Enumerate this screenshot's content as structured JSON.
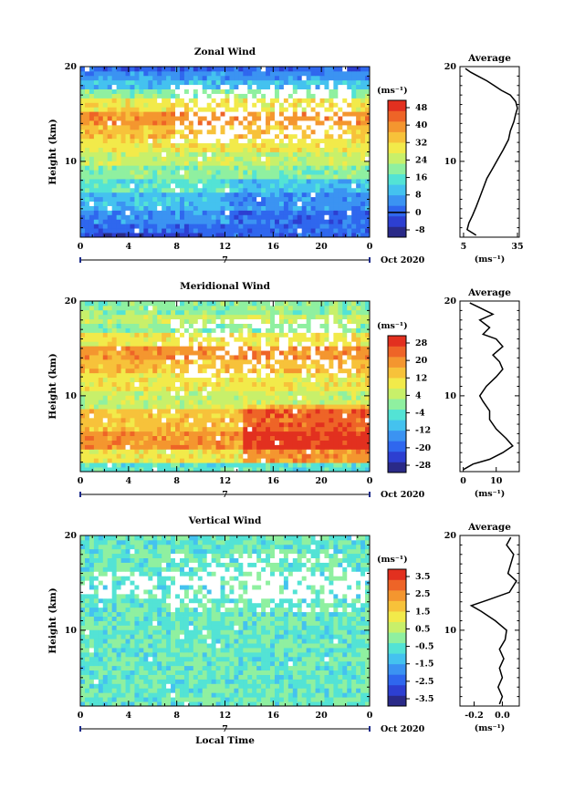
{
  "chart_data": [
    {
      "type": "heatmap",
      "title": "Zonal Wind",
      "ylabel": "Height (km)",
      "xlabel": "",
      "x_ticks": [
        "0",
        "4",
        "8",
        "12",
        "16",
        "20",
        "0"
      ],
      "y_ticks": [
        "20",
        "10"
      ],
      "ylim": [
        2,
        20
      ],
      "xlim": [
        0,
        24
      ],
      "date_marker": "7",
      "date_label": "Oct 2020",
      "colorbar": {
        "unit": "(ms⁻¹)",
        "ticks": [
          "48",
          "40",
          "32",
          "24",
          "16",
          "8",
          "0",
          "-8"
        ],
        "zero_line_value": "0"
      },
      "profile": {
        "title": "Average",
        "xlabel": "(ms⁻¹)",
        "x_ticks": [
          "5",
          "35"
        ],
        "xlim": [
          3,
          36
        ],
        "y_ticks": [
          "20",
          "10"
        ],
        "points": [
          [
            12,
            2.2
          ],
          [
            7,
            2.8
          ],
          [
            8,
            3.5
          ],
          [
            10,
            4.3
          ],
          [
            12,
            5.2
          ],
          [
            14,
            6.2
          ],
          [
            16,
            7.2
          ],
          [
            18,
            8.2
          ],
          [
            21,
            9.2
          ],
          [
            24,
            10.2
          ],
          [
            27,
            11.2
          ],
          [
            30,
            12.3
          ],
          [
            31,
            13.2
          ],
          [
            33,
            14.2
          ],
          [
            34,
            15
          ],
          [
            35,
            15.6
          ],
          [
            34,
            16.3
          ],
          [
            31,
            17.0
          ],
          [
            26,
            17.5
          ],
          [
            22,
            18.0
          ],
          [
            18,
            18.5
          ],
          [
            13,
            19.0
          ],
          [
            9,
            19.4
          ],
          [
            6,
            19.8
          ]
        ]
      },
      "colors": [
        "#2a2a88",
        "#2d3fd1",
        "#2f67ee",
        "#3b93f2",
        "#44c2ef",
        "#53e3d5",
        "#8ff0a0",
        "#c8f06a",
        "#f2ea4a",
        "#f7c23a",
        "#f4962f",
        "#ee6427",
        "#e2301f"
      ],
      "bands": [
        [
          2,
          2.6,
          1
        ],
        [
          2.6,
          3.2,
          2
        ],
        [
          3.2,
          5.0,
          3
        ],
        [
          5.0,
          6.8,
          4
        ],
        [
          6.8,
          8.2,
          5
        ],
        [
          8.2,
          9.6,
          6
        ],
        [
          9.6,
          11.0,
          7
        ],
        [
          11.0,
          12.5,
          8
        ],
        [
          12.5,
          14.0,
          9
        ],
        [
          14.0,
          15.5,
          10
        ],
        [
          15.5,
          16.8,
          8
        ],
        [
          16.8,
          17.6,
          6
        ],
        [
          17.6,
          18.6,
          4
        ],
        [
          18.6,
          19.3,
          3
        ],
        [
          19.3,
          20,
          2
        ]
      ]
    },
    {
      "type": "heatmap",
      "title": "Meridional Wind",
      "ylabel": "Height (km)",
      "xlabel": "",
      "x_ticks": [
        "0",
        "4",
        "8",
        "12",
        "16",
        "20",
        "0"
      ],
      "y_ticks": [
        "20",
        "10"
      ],
      "ylim": [
        2,
        20
      ],
      "xlim": [
        0,
        24
      ],
      "date_marker": "7",
      "date_label": "Oct 2020",
      "colorbar": {
        "unit": "(ms⁻¹)",
        "ticks": [
          "28",
          "20",
          "12",
          "4",
          "-4",
          "-12",
          "-20",
          "-28"
        ],
        "zero_line_value": "0"
      },
      "profile": {
        "title": "Average",
        "xlabel": "(ms⁻¹)",
        "x_ticks": [
          "0",
          "10"
        ],
        "xlim": [
          -1,
          17
        ],
        "y_ticks": [
          "20",
          "10"
        ],
        "points": [
          [
            0,
            2.2
          ],
          [
            3,
            2.8
          ],
          [
            8,
            3.3
          ],
          [
            12,
            4.0
          ],
          [
            15,
            4.7
          ],
          [
            13,
            5.5
          ],
          [
            10,
            6.5
          ],
          [
            8,
            7.5
          ],
          [
            8,
            8.4
          ],
          [
            6,
            9.4
          ],
          [
            5,
            10.0
          ],
          [
            7,
            11.0
          ],
          [
            10,
            12.0
          ],
          [
            12,
            12.8
          ],
          [
            11,
            13.6
          ],
          [
            9,
            14.3
          ],
          [
            12,
            15.2
          ],
          [
            10,
            16.0
          ],
          [
            6,
            16.5
          ],
          [
            8,
            17.2
          ],
          [
            5,
            18.0
          ],
          [
            9,
            18.6
          ],
          [
            5,
            19.3
          ],
          [
            2,
            19.8
          ]
        ]
      },
      "colors": [
        "#2a2a88",
        "#2d3fd1",
        "#2f67ee",
        "#3b93f2",
        "#44c2ef",
        "#53e3d5",
        "#8ff0a0",
        "#c8f06a",
        "#f2ea4a",
        "#f7c23a",
        "#f4962f",
        "#ee6427",
        "#e2301f"
      ],
      "bands": [
        [
          2,
          2.8,
          5
        ],
        [
          2.8,
          4.5,
          8
        ],
        [
          4.5,
          6.5,
          10
        ],
        [
          6.5,
          8.5,
          9
        ],
        [
          8.5,
          10.5,
          7
        ],
        [
          10.5,
          12.5,
          8
        ],
        [
          12.5,
          14.0,
          9
        ],
        [
          14.0,
          15.2,
          10
        ],
        [
          15.2,
          16.5,
          8
        ],
        [
          16.5,
          17.5,
          6
        ],
        [
          17.5,
          18.5,
          7
        ],
        [
          18.5,
          20,
          6
        ]
      ]
    },
    {
      "type": "heatmap",
      "title": "Vertical Wind",
      "ylabel": "Height (km)",
      "xlabel": "Local Time",
      "x_ticks": [
        "0",
        "4",
        "8",
        "12",
        "16",
        "20",
        "0"
      ],
      "y_ticks": [
        "20",
        "10"
      ],
      "ylim": [
        2,
        20
      ],
      "xlim": [
        0,
        24
      ],
      "date_marker": "7",
      "date_label": "Oct 2020",
      "colorbar": {
        "unit": "(ms⁻¹)",
        "ticks": [
          "3.5",
          "2.5",
          "1.5",
          "0.5",
          "-0.5",
          "-1.5",
          "-2.5",
          "-3.5"
        ],
        "zero_line_value": ""
      },
      "profile": {
        "title": "Average",
        "xlabel": "(ms⁻¹)",
        "x_ticks": [
          "-0.2",
          "0.0"
        ],
        "xlim": [
          -0.3,
          0.12
        ],
        "y_ticks": [
          "20",
          "10"
        ],
        "points": [
          [
            -0.02,
            2.2
          ],
          [
            0.0,
            3.0
          ],
          [
            -0.03,
            4.0
          ],
          [
            0.0,
            5.0
          ],
          [
            -0.02,
            6.0
          ],
          [
            0.01,
            7.0
          ],
          [
            -0.02,
            8.0
          ],
          [
            0.02,
            9.0
          ],
          [
            0.03,
            10.0
          ],
          [
            -0.05,
            11.0
          ],
          [
            -0.15,
            12.0
          ],
          [
            -0.22,
            12.6
          ],
          [
            -0.1,
            13.2
          ],
          [
            0.05,
            14.0
          ],
          [
            0.1,
            15.2
          ],
          [
            0.04,
            16.0
          ],
          [
            0.06,
            17.0
          ],
          [
            0.08,
            18.0
          ],
          [
            0.03,
            19.0
          ],
          [
            0.06,
            19.8
          ]
        ]
      },
      "colors": [
        "#2a2a88",
        "#2d3fd1",
        "#2f67ee",
        "#3b93f2",
        "#44c2ef",
        "#53e3d5",
        "#8ff0a0",
        "#c8f06a",
        "#f2ea4a",
        "#f7c23a",
        "#f4962f",
        "#ee6427",
        "#e2301f"
      ],
      "bands": [
        [
          2,
          20,
          5
        ]
      ]
    }
  ]
}
